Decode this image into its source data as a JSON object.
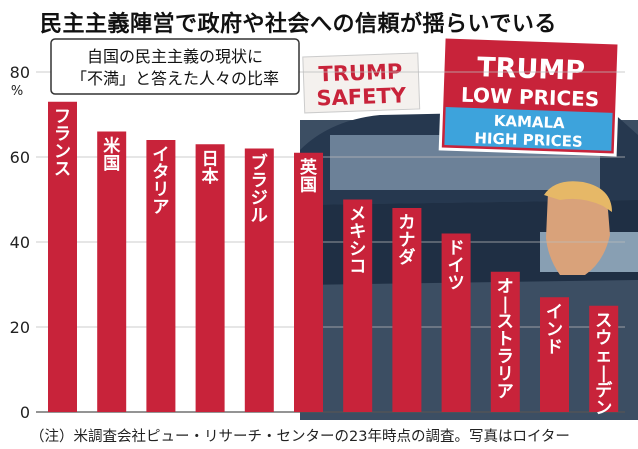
{
  "title": "民主主義陣営で政府や社会への信頼が揺らいでいる",
  "note": "（注）米調査会社ピュー・リサーチ・センターの23年時点の調査。写真はロイター",
  "photo_signs": {
    "sign1_line1": "TRUMP",
    "sign1_line2": "SAFETY",
    "sign2_line1": "TRUMP",
    "sign2_line2": "LOW PRICES",
    "sign2_line3": "KAMALA",
    "sign2_line4": "HIGH PRICES"
  },
  "colors": {
    "bar": "#c8233a",
    "bar_label": "#ffffff",
    "axis_text": "#222222",
    "grid": "#bbbbbb"
  },
  "chart_data": {
    "type": "bar",
    "subtitle_lines": [
      "自国の民主主義の現状に",
      "「不満」と答えた人々の比率"
    ],
    "y_unit": "%",
    "ylim": [
      0,
      80
    ],
    "yticks": [
      "0",
      "20",
      "40",
      "60",
      "80"
    ],
    "categories": [
      "フランス",
      "米国",
      "イタリア",
      "日本",
      "ブラジル",
      "英国",
      "メキシコ",
      "カナダ",
      "ドイツ",
      "オーストラリア",
      "インド",
      "スウェーデン"
    ],
    "values": [
      73,
      66,
      64,
      63,
      62,
      61,
      50,
      48,
      42,
      33,
      27,
      25
    ]
  }
}
